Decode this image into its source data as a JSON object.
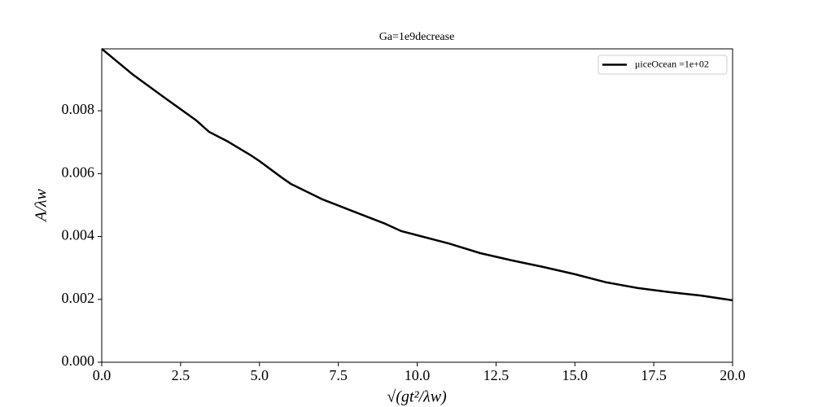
{
  "chart_data": {
    "type": "line",
    "title": "Ga=1e9decrease",
    "x_label": "√(gt²/λw)",
    "y_label": "A/λw",
    "x": [
      0,
      1,
      2,
      3,
      3.4,
      4,
      4.7,
      5,
      5.7,
      6,
      7,
      8,
      9,
      9.5,
      10,
      11,
      12,
      13,
      14,
      15,
      16,
      17,
      18,
      19,
      20
    ],
    "series": [
      {
        "name": "μiceOcean =1e+02",
        "color": "#000000",
        "values": [
          0.00997,
          0.00914,
          0.00841,
          0.00769,
          0.00733,
          0.00702,
          0.0066,
          0.0064,
          0.00588,
          0.00567,
          0.00518,
          0.00479,
          0.0044,
          0.00417,
          0.00404,
          0.00378,
          0.00347,
          0.00324,
          0.00303,
          0.0028,
          0.00254,
          0.00236,
          0.00223,
          0.00212,
          0.00197
        ]
      }
    ],
    "xlim": [
      0,
      20
    ],
    "ylim": [
      0,
      0.00997
    ],
    "xticks": [
      {
        "value": 0,
        "label": "0.0"
      },
      2.5,
      {
        "value": 5,
        "label": "5.0"
      },
      7.5,
      {
        "value": 10,
        "label": "10.0"
      },
      12.5,
      {
        "value": 15,
        "label": "15.0"
      },
      17.5,
      {
        "value": 20,
        "label": "20.0"
      }
    ],
    "yticks": [
      {
        "value": 0,
        "label": "0.000"
      },
      0.002,
      0.004,
      0.006,
      0.008
    ],
    "grid": false,
    "legend": "upper right"
  }
}
